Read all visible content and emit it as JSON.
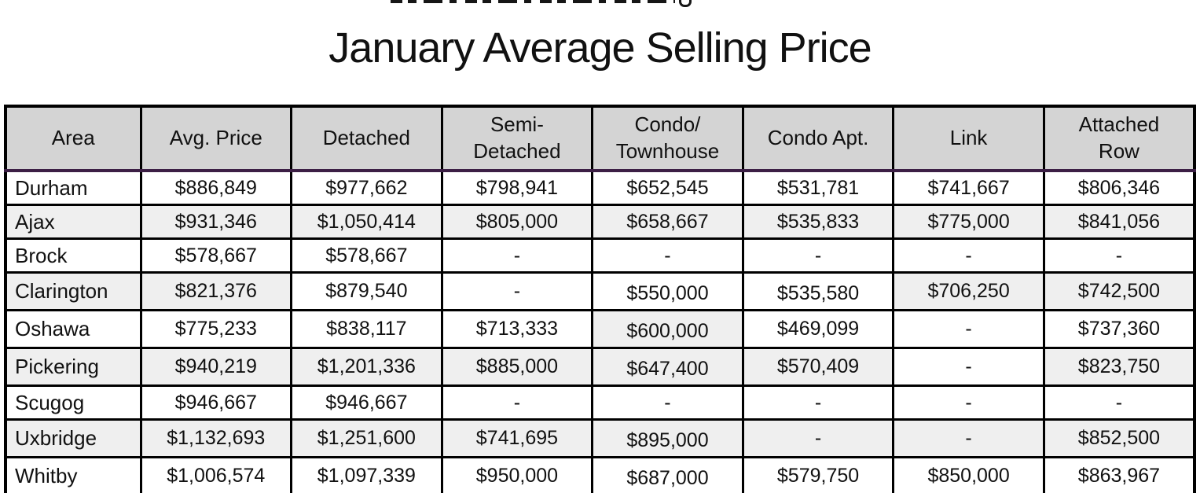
{
  "page": {
    "title": "January Average Selling Price"
  },
  "table": {
    "columns": [
      "Area",
      "Avg. Price",
      "Detached",
      "Semi-\nDetached",
      "Condo/\nTownhouse",
      "Condo Apt.",
      "Link",
      "Attached\nRow"
    ],
    "rows": [
      {
        "area": "Durham",
        "values": [
          "$886,849",
          "$977,662",
          "$798,941",
          "$652,545",
          "$531,781",
          "$741,667",
          "$806,346"
        ],
        "bg": "WWWWWWWW",
        "low": []
      },
      {
        "area": "Ajax",
        "values": [
          "$931,346",
          "$1,050,414",
          "$805,000",
          "$658,667",
          "$535,833",
          "$775,000",
          "$841,056"
        ],
        "bg": "GGGGGGGG",
        "low": []
      },
      {
        "area": "Brock",
        "values": [
          "$578,667",
          "$578,667",
          "-",
          "-",
          "-",
          "-",
          "-"
        ],
        "bg": "WWWWWWWW",
        "low": []
      },
      {
        "area": "Clarington",
        "values": [
          "$821,376",
          "$879,540",
          "-",
          "$550,000",
          "$535,580",
          "$706,250",
          "$742,500"
        ],
        "bg": "GGWWWWGG",
        "low": [
          3,
          4
        ]
      },
      {
        "area": "Oshawa",
        "values": [
          "$775,233",
          "$838,117",
          "$713,333",
          "$600,000",
          "$469,099",
          "-",
          "$737,360"
        ],
        "bg": "WWWWGWWW",
        "low": [
          3
        ]
      },
      {
        "area": "Pickering",
        "values": [
          "$940,219",
          "$1,201,336",
          "$885,000",
          "$647,400",
          "$570,409",
          "-",
          "$823,750"
        ],
        "bg": "GGGGGGWG",
        "low": [
          3
        ]
      },
      {
        "area": "Scugog",
        "values": [
          "$946,667",
          "$946,667",
          "-",
          "-",
          "-",
          "-",
          "-"
        ],
        "bg": "WWWWWWWW",
        "low": []
      },
      {
        "area": "Uxbridge",
        "values": [
          "$1,132,693",
          "$1,251,600",
          "$741,695",
          "$895,000",
          "-",
          "-",
          "$852,500"
        ],
        "bg": "GGGGGGGG",
        "low": [
          3
        ]
      },
      {
        "area": "Whitby",
        "values": [
          "$1,006,574",
          "$1,097,339",
          "$950,000",
          "$687,000",
          "$579,750",
          "$850,000",
          "$863,967"
        ],
        "bg": "WWWWWWWW",
        "low": [
          3
        ]
      }
    ]
  },
  "colors": {
    "header_bg": "#d4d4d4",
    "stripe_bg": "#efefef",
    "accent_line": "#3c1f45",
    "border": "#000000"
  }
}
